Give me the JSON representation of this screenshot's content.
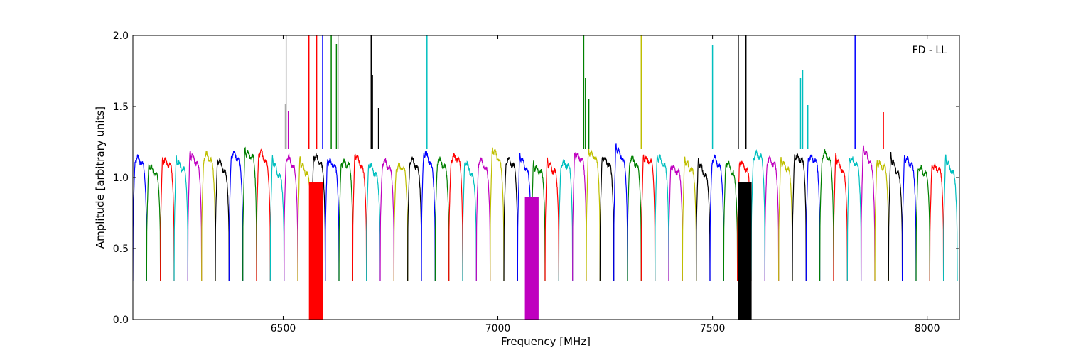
{
  "chart_data": {
    "type": "line",
    "annotation": "FD - LL",
    "xlabel": "Frequency [MHz]",
    "ylabel": "Amplitude [arbitrary units]",
    "xlim": [
      6150,
      8075
    ],
    "ylim": [
      0.0,
      2.0
    ],
    "xticks": [
      6500,
      7000,
      7500,
      8000
    ],
    "yticks": [
      0.0,
      0.5,
      1.0,
      1.5,
      2.0
    ],
    "xtick_labels": [
      "6500",
      "7000",
      "7500",
      "8000"
    ],
    "ytick_labels": [
      "0.0",
      "0.5",
      "1.0",
      "1.5",
      "2.0"
    ],
    "grid": false,
    "legend": "none",
    "channel_start_mhz": 6150,
    "channel_width_mhz": 32,
    "channel_count": 60,
    "shape": {
      "edge_level": 0.27,
      "plateau_level": 1.2
    },
    "palette": [
      "#0000ff",
      "#008000",
      "#ff0000",
      "#00bfbf",
      "#bf00bf",
      "#bfbf00",
      "#000000"
    ],
    "interference": [
      {
        "x": 6505,
        "y_peak": 1.52,
        "color": "#aaaaaa"
      },
      {
        "x": 6507,
        "y_peak": 2.0,
        "color": "#aaaaaa"
      },
      {
        "x": 6512,
        "y_peak": 1.47,
        "color": "#bf00bf"
      },
      {
        "x": 6560,
        "y_peak": 2.0,
        "color": "#ff0000"
      },
      {
        "x": 6578,
        "y_peak": 2.0,
        "color": "#ff0000"
      },
      {
        "x": 6592,
        "y_peak": 2.0,
        "color": "#0000ff"
      },
      {
        "x": 6612,
        "y_peak": 2.0,
        "color": "#008000"
      },
      {
        "x": 6624,
        "y_peak": 1.94,
        "color": "#008000"
      },
      {
        "x": 6628,
        "y_peak": 2.0,
        "color": "#aaaaaa"
      },
      {
        "x": 6705,
        "y_peak": 2.0,
        "color": "#000000"
      },
      {
        "x": 6708,
        "y_peak": 1.72,
        "color": "#000000"
      },
      {
        "x": 6722,
        "y_peak": 1.49,
        "color": "#000000"
      },
      {
        "x": 6835,
        "y_peak": 2.0,
        "color": "#00bfbf"
      },
      {
        "x": 7200,
        "y_peak": 2.0,
        "color": "#008000"
      },
      {
        "x": 7204,
        "y_peak": 1.7,
        "color": "#008000"
      },
      {
        "x": 7212,
        "y_peak": 1.55,
        "color": "#008000"
      },
      {
        "x": 7334,
        "y_peak": 2.0,
        "color": "#bfbf00"
      },
      {
        "x": 7500,
        "y_peak": 1.93,
        "color": "#00bfbf"
      },
      {
        "x": 7560,
        "y_peak": 2.0,
        "color": "#000000"
      },
      {
        "x": 7578,
        "y_peak": 2.0,
        "color": "#000000"
      },
      {
        "x": 7705,
        "y_peak": 1.7,
        "color": "#00bfbf"
      },
      {
        "x": 7710,
        "y_peak": 1.76,
        "color": "#00bfbf"
      },
      {
        "x": 7722,
        "y_peak": 1.51,
        "color": "#00bfbf"
      },
      {
        "x": 7832,
        "y_peak": 2.0,
        "color": "#0000ff"
      },
      {
        "x": 7898,
        "y_peak": 1.46,
        "color": "#ff0000"
      }
    ],
    "saturated_bands": [
      {
        "x_start": 6560,
        "x_end": 6593,
        "y_low": 0.0,
        "y_high": 0.97,
        "color": "#ff0000"
      },
      {
        "x_start": 7063,
        "x_end": 7095,
        "y_low": 0.0,
        "y_high": 0.86,
        "color": "#bf00bf"
      },
      {
        "x_start": 7559,
        "x_end": 7591,
        "y_low": 0.0,
        "y_high": 0.97,
        "color": "#000000"
      }
    ]
  }
}
